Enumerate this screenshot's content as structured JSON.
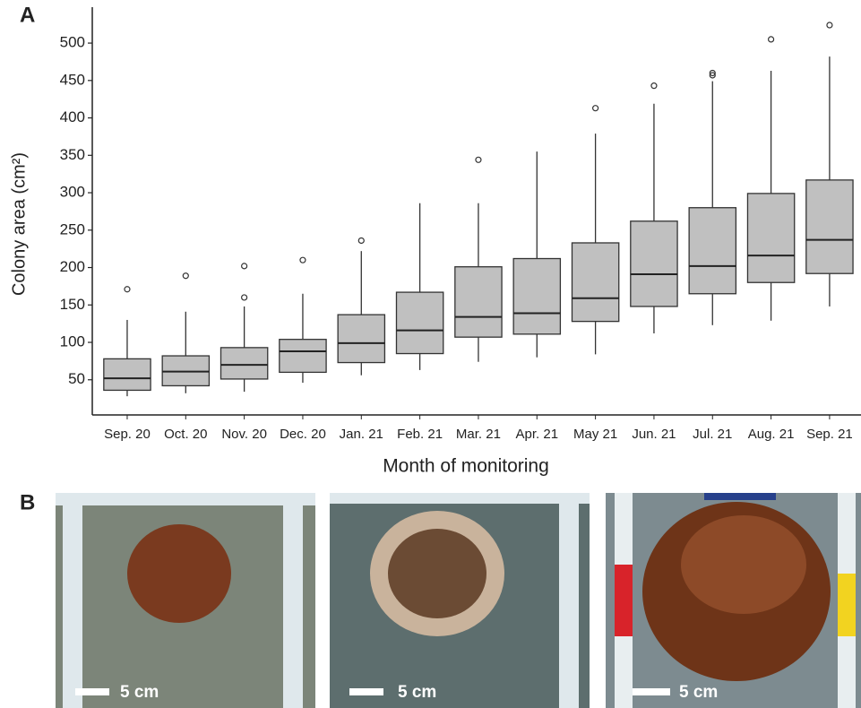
{
  "chart_data": {
    "type": "box",
    "panel_label": "A",
    "x_label": "Month of monitoring",
    "y_label": "Colony area (cm²)",
    "categories": [
      "Sep. 20",
      "Oct. 20",
      "Nov. 20",
      "Dec. 20",
      "Jan. 21",
      "Feb. 21",
      "Mar. 21",
      "Apr. 21",
      "May 21",
      "Jun. 21",
      "Jul. 21",
      "Aug. 21",
      "Sep. 21"
    ],
    "color": "#c0c0c0",
    "ylim": [
      3,
      548
    ],
    "yticks": [
      50,
      100,
      150,
      200,
      250,
      300,
      350,
      400,
      450,
      500
    ],
    "boxes": [
      {
        "whisker_low": 28,
        "q1": 36,
        "median": 52,
        "q3": 78,
        "whisker_high": 130,
        "outliers": [
          171
        ]
      },
      {
        "whisker_low": 32,
        "q1": 42,
        "median": 61,
        "q3": 82,
        "whisker_high": 141,
        "outliers": [
          189
        ]
      },
      {
        "whisker_low": 34,
        "q1": 51,
        "median": 70,
        "q3": 93,
        "whisker_high": 148,
        "outliers": [
          160,
          202
        ]
      },
      {
        "whisker_low": 46,
        "q1": 60,
        "median": 88,
        "q3": 104,
        "whisker_high": 165,
        "outliers": [
          210
        ]
      },
      {
        "whisker_low": 56,
        "q1": 73,
        "median": 99,
        "q3": 137,
        "whisker_high": 222,
        "outliers": [
          236
        ]
      },
      {
        "whisker_low": 63,
        "q1": 85,
        "median": 116,
        "q3": 167,
        "whisker_high": 286,
        "outliers": []
      },
      {
        "whisker_low": 74,
        "q1": 107,
        "median": 134,
        "q3": 201,
        "whisker_high": 286,
        "outliers": [
          344
        ]
      },
      {
        "whisker_low": 80,
        "q1": 111,
        "median": 139,
        "q3": 212,
        "whisker_high": 355,
        "outliers": []
      },
      {
        "whisker_low": 84,
        "q1": 128,
        "median": 159,
        "q3": 233,
        "whisker_high": 379,
        "outliers": [
          413
        ]
      },
      {
        "whisker_low": 112,
        "q1": 148,
        "median": 191,
        "q3": 262,
        "whisker_high": 419,
        "outliers": [
          443
        ]
      },
      {
        "whisker_low": 123,
        "q1": 165,
        "median": 202,
        "q3": 280,
        "whisker_high": 449,
        "outliers": [
          457,
          460
        ]
      },
      {
        "whisker_low": 129,
        "q1": 180,
        "median": 216,
        "q3": 299,
        "whisker_high": 463,
        "outliers": [
          505
        ]
      },
      {
        "whisker_low": 148,
        "q1": 192,
        "median": 237,
        "q3": 317,
        "whisker_high": 482,
        "outliers": [
          524
        ]
      }
    ]
  },
  "photo_panel": {
    "panel_label": "B",
    "scale_bars": [
      "5 cm",
      "5 cm",
      "5 cm"
    ]
  }
}
